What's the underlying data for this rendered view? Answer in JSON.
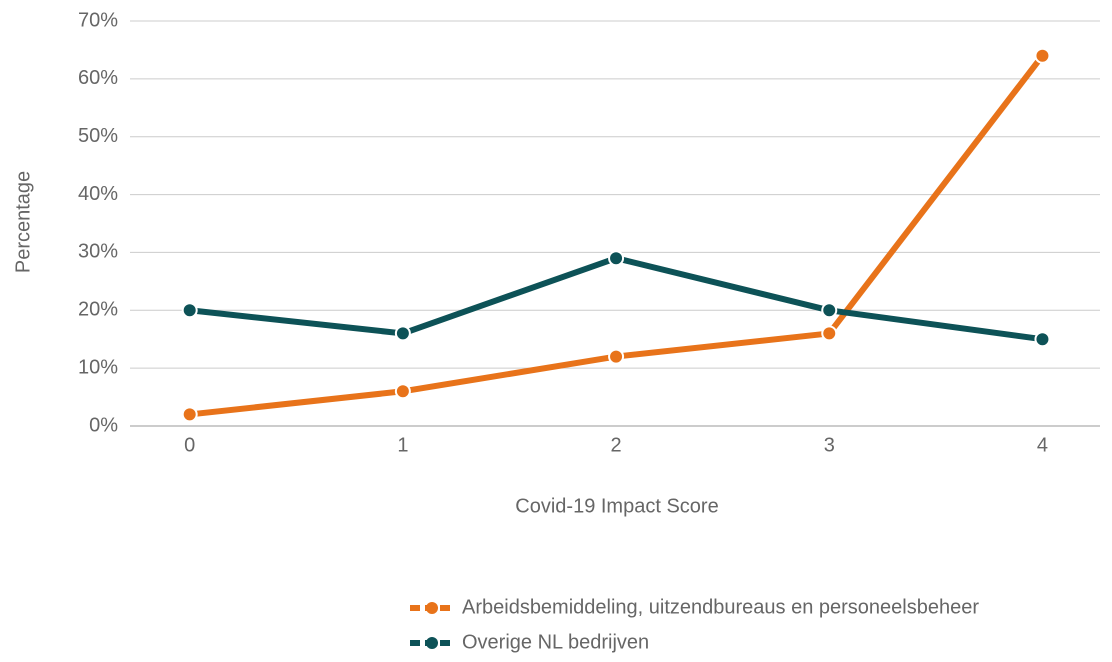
{
  "chart_data": {
    "type": "line",
    "x_label": "Covid-19 Impact Score",
    "y_label": "Percentage",
    "x": [
      0,
      1,
      2,
      3,
      4
    ],
    "xlim": [
      -0.28,
      4.27
    ],
    "xticks": [
      0,
      1,
      2,
      3,
      4
    ],
    "ylim": [
      0,
      70
    ],
    "yticks": [
      {
        "value": 0,
        "label": "0%"
      },
      {
        "value": 10,
        "label": "10%"
      },
      {
        "value": 20,
        "label": "20%"
      },
      {
        "value": 30,
        "label": "30%"
      },
      {
        "value": 40,
        "label": "40%"
      },
      {
        "value": 50,
        "label": "50%"
      },
      {
        "value": 60,
        "label": "60%"
      },
      {
        "value": 70,
        "label": "70%"
      }
    ],
    "grid": true,
    "legend": "bottom-right",
    "series": [
      {
        "name": "Arbeidsbemiddeling, uitzendbureaus en personeelsbeheer",
        "color": "#e8731a",
        "values": [
          2,
          6,
          12,
          16,
          64
        ]
      },
      {
        "name": "Overige NL bedrijven",
        "color": "#0d5257",
        "values": [
          20,
          16,
          29,
          20,
          15
        ]
      }
    ]
  }
}
